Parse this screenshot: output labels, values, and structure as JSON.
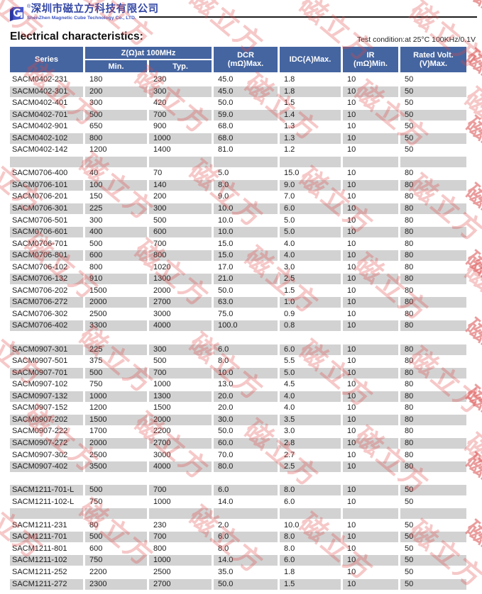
{
  "logo": {
    "company_cn": "深圳市磁立方科技有限公司",
    "company_en": "ShenZhen Magnetic Cube Technology Co., LTD.",
    "registered_mark": "®",
    "brand_color": "#3448a4"
  },
  "page_header": {
    "title": "Electrical characteristics:",
    "test_condition": "Test condition:at 25°C  100KHz/0.1V"
  },
  "watermark": {
    "text": "磁立方",
    "color_light": "rgba(224,74,74,0.30)",
    "color_strong": "rgba(214,58,58,0.50)"
  },
  "table": {
    "header": {
      "series": "Series",
      "z_group": "Z(Ω)at 100MHz",
      "z_min": "Min.",
      "z_typ": "Typ.",
      "dcr_line1": "DCR",
      "dcr_line2": "(mΩ)Max.",
      "idc": "IDC(A)Max.",
      "ir_line1": "IR",
      "ir_line2": "(mΩ)Min.",
      "rated_line1": "Rated Volt.",
      "rated_line2": "(V)Max.",
      "header_bg": "#4565a0",
      "stripe_bg": "#d2d2d2"
    },
    "rows": [
      {
        "type": "data",
        "shaded": false,
        "cells": [
          "SACM0402-231",
          "180",
          "230",
          "45.0",
          "1.8",
          "10",
          "50"
        ]
      },
      {
        "type": "data",
        "shaded": true,
        "cells": [
          "SACM0402-301",
          "200",
          "300",
          "45.0",
          "1.8",
          "10",
          "50"
        ]
      },
      {
        "type": "data",
        "shaded": false,
        "cells": [
          "SACM0402-401",
          "300",
          "420",
          "50.0",
          "1.5",
          "10",
          "50"
        ]
      },
      {
        "type": "data",
        "shaded": true,
        "cells": [
          "SACM0402-701",
          "500",
          "700",
          "59.0",
          "1.4",
          "10",
          "50"
        ]
      },
      {
        "type": "data",
        "shaded": false,
        "cells": [
          "SACM0402-901",
          "650",
          "900",
          "68.0",
          "1.3",
          "10",
          "50"
        ]
      },
      {
        "type": "data",
        "shaded": true,
        "cells": [
          "SACM0402-102",
          "800",
          "1000",
          "68.0",
          "1.3",
          "10",
          "50"
        ]
      },
      {
        "type": "data",
        "shaded": false,
        "cells": [
          "SACM0402-142",
          "1200",
          "1400",
          "81.0",
          "1.2",
          "10",
          "50"
        ]
      },
      {
        "type": "spacer",
        "shaded": true
      },
      {
        "type": "data",
        "shaded": false,
        "cells": [
          "SACM0706-400",
          "40",
          "70",
          "5.0",
          "15.0",
          "10",
          "80"
        ]
      },
      {
        "type": "data",
        "shaded": true,
        "cells": [
          "SACM0706-101",
          "100",
          "140",
          "8.0",
          "9.0",
          "10",
          "80"
        ]
      },
      {
        "type": "data",
        "shaded": false,
        "cells": [
          "SACM0706-201",
          "150",
          "200",
          "9.0",
          "7.0",
          "10",
          "80"
        ]
      },
      {
        "type": "data",
        "shaded": true,
        "cells": [
          "SACM0706-301",
          "225",
          "300",
          "10.0",
          "6.0",
          "10",
          "80"
        ]
      },
      {
        "type": "data",
        "shaded": false,
        "cells": [
          "SACM0706-501",
          "300",
          "500",
          "10.0",
          "5.0",
          "10",
          "80"
        ]
      },
      {
        "type": "data",
        "shaded": true,
        "cells": [
          "SACM0706-601",
          "400",
          "600",
          "10.0",
          "5.0",
          "10",
          "80"
        ]
      },
      {
        "type": "data",
        "shaded": false,
        "cells": [
          "SACM0706-701",
          "500",
          "700",
          "15.0",
          "4.0",
          "10",
          "80"
        ]
      },
      {
        "type": "data",
        "shaded": true,
        "cells": [
          "SACM0706-801",
          "600",
          "800",
          "15.0",
          "4.0",
          "10",
          "80"
        ]
      },
      {
        "type": "data",
        "shaded": false,
        "cells": [
          "SACM0706-102",
          "800",
          "1020",
          "17.0",
          "3.0",
          "10",
          "80"
        ]
      },
      {
        "type": "data",
        "shaded": true,
        "cells": [
          "SACM0706-132",
          "910",
          "1300",
          "21.0",
          "2.5",
          "10",
          "80"
        ]
      },
      {
        "type": "data",
        "shaded": false,
        "cells": [
          "SACM0706-202",
          "1500",
          "2000",
          "50.0",
          "1.5",
          "10",
          "80"
        ]
      },
      {
        "type": "data",
        "shaded": true,
        "cells": [
          "SACM0706-272",
          "2000",
          "2700",
          "63.0",
          "1.0",
          "10",
          "80"
        ]
      },
      {
        "type": "data",
        "shaded": false,
        "cells": [
          "SACM0706-302",
          "2500",
          "3000",
          "75.0",
          "0.9",
          "10",
          "80"
        ]
      },
      {
        "type": "data",
        "shaded": true,
        "cells": [
          "SACM0706-402",
          "3300",
          "4000",
          "100.0",
          "0.8",
          "10",
          "80"
        ]
      },
      {
        "type": "spacer",
        "shaded": false
      },
      {
        "type": "data",
        "shaded": true,
        "cells": [
          "SACM0907-301",
          "225",
          "300",
          "6.0",
          "6.0",
          "10",
          "80"
        ]
      },
      {
        "type": "data",
        "shaded": false,
        "cells": [
          "SACM0907-501",
          "375",
          "500",
          "8.0",
          "5.5",
          "10",
          "80"
        ]
      },
      {
        "type": "data",
        "shaded": true,
        "cells": [
          "SACM0907-701",
          "500",
          "700",
          "10.0",
          "5.0",
          "10",
          "80"
        ]
      },
      {
        "type": "data",
        "shaded": false,
        "cells": [
          "SACM0907-102",
          "750",
          "1000",
          "13.0",
          "4.5",
          "10",
          "80"
        ]
      },
      {
        "type": "data",
        "shaded": true,
        "cells": [
          "SACM0907-132",
          "1000",
          "1300",
          "20.0",
          "4.0",
          "10",
          "80"
        ]
      },
      {
        "type": "data",
        "shaded": false,
        "cells": [
          "SACM0907-152",
          "1200",
          "1500",
          "20.0",
          "4.0",
          "10",
          "80"
        ]
      },
      {
        "type": "data",
        "shaded": true,
        "cells": [
          "SACM0907-202",
          "1500",
          "2000",
          "30.0",
          "3.5",
          "10",
          "80"
        ]
      },
      {
        "type": "data",
        "shaded": false,
        "cells": [
          "SACM0907-222",
          "1700",
          "2200",
          "50.0",
          "3.0",
          "10",
          "80"
        ]
      },
      {
        "type": "data",
        "shaded": true,
        "cells": [
          "SACM0907-272",
          "2000",
          "2700",
          "60.0",
          "2.8",
          "10",
          "80"
        ]
      },
      {
        "type": "data",
        "shaded": false,
        "cells": [
          "SACM0907-302",
          "2500",
          "3000",
          "70.0",
          "2.7",
          "10",
          "80"
        ]
      },
      {
        "type": "data",
        "shaded": true,
        "cells": [
          "SACM0907-402",
          "3500",
          "4000",
          "80.0",
          "2.5",
          "10",
          "80"
        ]
      },
      {
        "type": "spacer",
        "shaded": false
      },
      {
        "type": "data",
        "shaded": true,
        "cells": [
          "SACM1211-701-L",
          "500",
          "700",
          "6.0",
          "8.0",
          "10",
          "50"
        ]
      },
      {
        "type": "data",
        "shaded": false,
        "cells": [
          "SACM1211-102-L",
          "750",
          "1000",
          "14.0",
          "6.0",
          "10",
          "50"
        ]
      },
      {
        "type": "spacer",
        "shaded": true
      },
      {
        "type": "data",
        "shaded": false,
        "cells": [
          "SACM1211-231",
          "80",
          "230",
          "2.0",
          "10.0",
          "10",
          "50"
        ]
      },
      {
        "type": "data",
        "shaded": true,
        "cells": [
          "SACM1211-701",
          "500",
          "700",
          "6.0",
          "8.0",
          "10",
          "50"
        ]
      },
      {
        "type": "data",
        "shaded": false,
        "cells": [
          "SACM1211-801",
          "600",
          "800",
          "8.0",
          "8.0",
          "10",
          "50"
        ]
      },
      {
        "type": "data",
        "shaded": true,
        "cells": [
          "SACM1211-102",
          "750",
          "1000",
          "14.0",
          "6.0",
          "10",
          "50"
        ]
      },
      {
        "type": "data",
        "shaded": false,
        "cells": [
          "SACM1211-252",
          "2200",
          "2500",
          "35.0",
          "1.8",
          "10",
          "50"
        ]
      },
      {
        "type": "data",
        "shaded": true,
        "cells": [
          "SACM1211-272",
          "2300",
          "2700",
          "50.0",
          "1.5",
          "10",
          "50"
        ]
      }
    ]
  }
}
